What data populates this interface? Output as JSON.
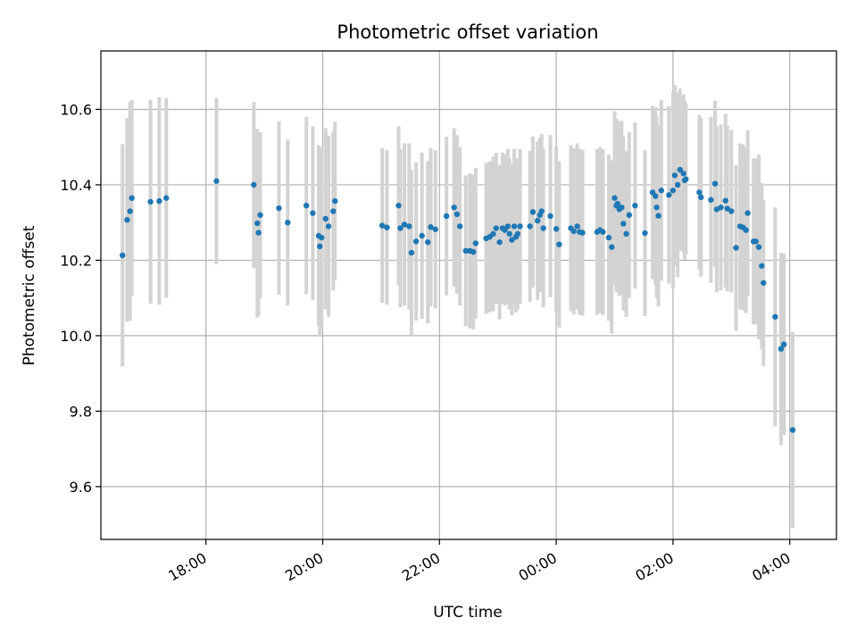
{
  "chart_data": {
    "type": "scatter",
    "title": "Photometric offset variation",
    "xlabel": "UTC time",
    "ylabel": "Photometric offset",
    "x_unit": "hours UTC (values past 24 are after midnight)",
    "xlim": [
      16.2,
      28.8
    ],
    "ylim": [
      9.46,
      10.755
    ],
    "yticks": [
      9.6,
      9.8,
      10.0,
      10.2,
      10.4,
      10.6
    ],
    "ytick_labels": [
      "9.6",
      "9.8",
      "10.0",
      "10.2",
      "10.4",
      "10.6"
    ],
    "xticks": [
      18,
      20,
      22,
      24,
      26,
      28
    ],
    "xtick_labels": [
      "18:00",
      "20:00",
      "22:00",
      "00:00",
      "02:00",
      "04:00"
    ],
    "grid": true,
    "colors": {
      "points": "#1f77b4",
      "errorbars": "#d3d3d3"
    },
    "points": [
      [
        16.57,
        10.213,
        0.295
      ],
      [
        16.65,
        10.307,
        0.27
      ],
      [
        16.7,
        10.33,
        0.29
      ],
      [
        16.73,
        10.365,
        0.26
      ],
      [
        17.05,
        10.355,
        0.27
      ],
      [
        17.2,
        10.357,
        0.275
      ],
      [
        17.32,
        10.365,
        0.265
      ],
      [
        18.18,
        10.41,
        0.22
      ],
      [
        18.82,
        10.4,
        0.22
      ],
      [
        18.88,
        10.298,
        0.25
      ],
      [
        18.9,
        10.273,
        0.22
      ],
      [
        18.93,
        10.32,
        0.22
      ],
      [
        19.25,
        10.338,
        0.23
      ],
      [
        19.4,
        10.3,
        0.22
      ],
      [
        19.72,
        10.345,
        0.235
      ],
      [
        19.83,
        10.325,
        0.23
      ],
      [
        19.93,
        10.265,
        0.24
      ],
      [
        19.95,
        10.237,
        0.24
      ],
      [
        19.98,
        10.26,
        0.24
      ],
      [
        20.05,
        10.31,
        0.24
      ],
      [
        20.1,
        10.29,
        0.24
      ],
      [
        20.18,
        10.33,
        0.21
      ],
      [
        20.21,
        10.357,
        0.21
      ],
      [
        21.02,
        10.292,
        0.205
      ],
      [
        21.1,
        10.287,
        0.205
      ],
      [
        21.3,
        10.345,
        0.21
      ],
      [
        21.33,
        10.285,
        0.21
      ],
      [
        21.4,
        10.295,
        0.215
      ],
      [
        21.48,
        10.29,
        0.22
      ],
      [
        21.52,
        10.22,
        0.22
      ],
      [
        21.6,
        10.25,
        0.21
      ],
      [
        21.7,
        10.265,
        0.22
      ],
      [
        21.8,
        10.248,
        0.215
      ],
      [
        21.85,
        10.288,
        0.21
      ],
      [
        21.93,
        10.282,
        0.21
      ],
      [
        22.12,
        10.317,
        0.21
      ],
      [
        22.25,
        10.34,
        0.21
      ],
      [
        22.3,
        10.322,
        0.21
      ],
      [
        22.35,
        10.29,
        0.21
      ],
      [
        22.45,
        10.225,
        0.2
      ],
      [
        22.52,
        10.225,
        0.205
      ],
      [
        22.58,
        10.222,
        0.205
      ],
      [
        22.62,
        10.245,
        0.2
      ],
      [
        22.8,
        10.258,
        0.2
      ],
      [
        22.86,
        10.262,
        0.2
      ],
      [
        22.92,
        10.27,
        0.205
      ],
      [
        22.97,
        10.285,
        0.2
      ],
      [
        23.03,
        10.248,
        0.205
      ],
      [
        23.08,
        10.285,
        0.2
      ],
      [
        23.12,
        10.28,
        0.2
      ],
      [
        23.17,
        10.29,
        0.205
      ],
      [
        23.2,
        10.27,
        0.2
      ],
      [
        23.24,
        10.254,
        0.2
      ],
      [
        23.28,
        10.29,
        0.205
      ],
      [
        23.31,
        10.262,
        0.2
      ],
      [
        23.34,
        10.27,
        0.2
      ],
      [
        23.38,
        10.29,
        0.205
      ],
      [
        23.55,
        10.29,
        0.2
      ],
      [
        23.6,
        10.328,
        0.2
      ],
      [
        23.68,
        10.305,
        0.21
      ],
      [
        23.72,
        10.32,
        0.205
      ],
      [
        23.75,
        10.33,
        0.205
      ],
      [
        23.78,
        10.285,
        0.21
      ],
      [
        23.9,
        10.317,
        0.215
      ],
      [
        24.0,
        10.283,
        0.22
      ],
      [
        24.05,
        10.242,
        0.22
      ],
      [
        24.25,
        10.285,
        0.22
      ],
      [
        24.3,
        10.277,
        0.22
      ],
      [
        24.36,
        10.29,
        0.22
      ],
      [
        24.4,
        10.275,
        0.22
      ],
      [
        24.45,
        10.273,
        0.22
      ],
      [
        24.7,
        10.275,
        0.22
      ],
      [
        24.75,
        10.28,
        0.22
      ],
      [
        24.8,
        10.275,
        0.22
      ],
      [
        24.9,
        10.26,
        0.22
      ],
      [
        24.95,
        10.235,
        0.23
      ],
      [
        25.0,
        10.365,
        0.23
      ],
      [
        25.03,
        10.345,
        0.23
      ],
      [
        25.05,
        10.35,
        0.22
      ],
      [
        25.08,
        10.335,
        0.23
      ],
      [
        25.12,
        10.34,
        0.23
      ],
      [
        25.15,
        10.297,
        0.23
      ],
      [
        25.2,
        10.27,
        0.22
      ],
      [
        25.25,
        10.32,
        0.22
      ],
      [
        25.35,
        10.345,
        0.22
      ],
      [
        25.52,
        10.272,
        0.22
      ],
      [
        25.65,
        10.38,
        0.23
      ],
      [
        25.7,
        10.37,
        0.235
      ],
      [
        25.72,
        10.34,
        0.24
      ],
      [
        25.75,
        10.318,
        0.24
      ],
      [
        25.8,
        10.385,
        0.24
      ],
      [
        25.93,
        10.373,
        0.235
      ],
      [
        26.0,
        10.385,
        0.26
      ],
      [
        26.03,
        10.425,
        0.24
      ],
      [
        26.08,
        10.4,
        0.245
      ],
      [
        26.12,
        10.44,
        0.215
      ],
      [
        26.18,
        10.43,
        0.21
      ],
      [
        26.2,
        10.412,
        0.21
      ],
      [
        26.22,
        10.415,
        0.2
      ],
      [
        26.45,
        10.38,
        0.205
      ],
      [
        26.48,
        10.367,
        0.21
      ],
      [
        26.65,
        10.36,
        0.22
      ],
      [
        26.72,
        10.403,
        0.22
      ],
      [
        26.75,
        10.335,
        0.22
      ],
      [
        26.82,
        10.34,
        0.22
      ],
      [
        26.9,
        10.358,
        0.23
      ],
      [
        26.93,
        10.337,
        0.22
      ],
      [
        27.0,
        10.33,
        0.215
      ],
      [
        27.08,
        10.233,
        0.22
      ],
      [
        27.15,
        10.29,
        0.22
      ],
      [
        27.2,
        10.287,
        0.22
      ],
      [
        27.25,
        10.28,
        0.22
      ],
      [
        27.28,
        10.325,
        0.22
      ],
      [
        27.38,
        10.25,
        0.22
      ],
      [
        27.42,
        10.25,
        0.22
      ],
      [
        27.47,
        10.235,
        0.245
      ],
      [
        27.52,
        10.185,
        0.22
      ],
      [
        27.55,
        10.14,
        0.22
      ],
      [
        27.75,
        10.05,
        0.29
      ],
      [
        27.85,
        9.965,
        0.255
      ],
      [
        27.9,
        9.977,
        0.24
      ],
      [
        28.05,
        9.75,
        0.26
      ]
    ]
  }
}
